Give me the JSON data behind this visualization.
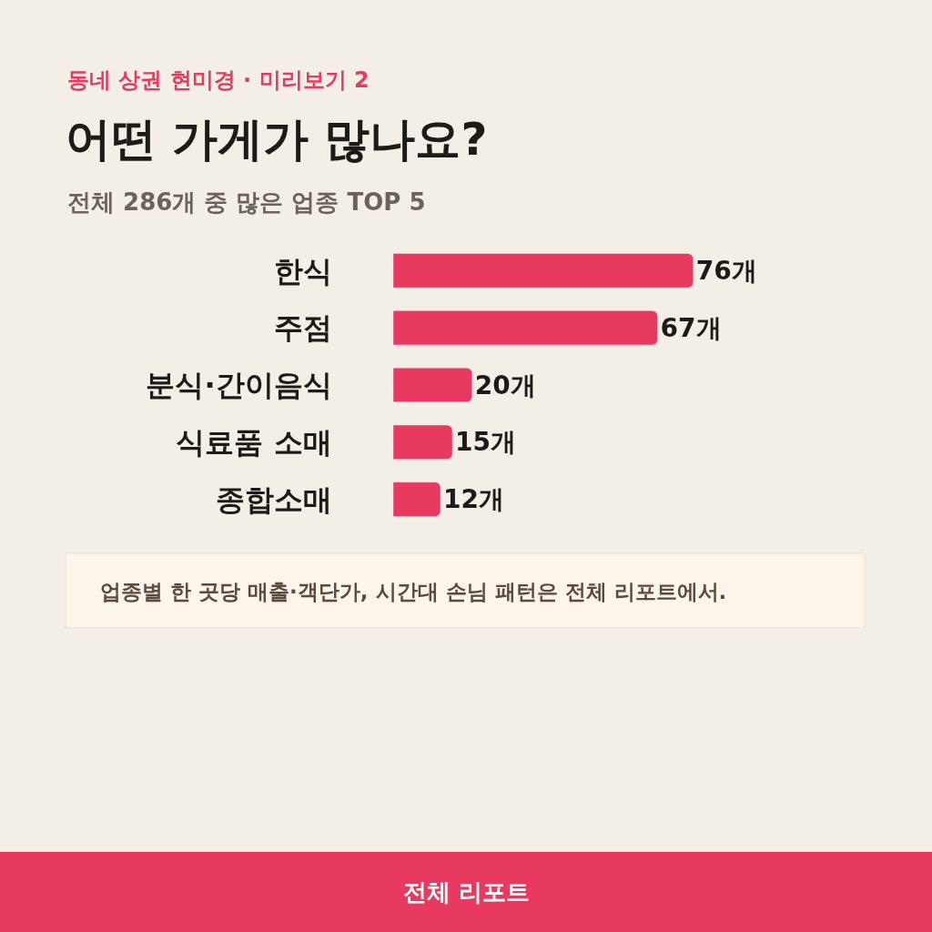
{
  "chart_data": {
    "type": "bar",
    "orientation": "horizontal",
    "title": "어떤 가게가 많나요?",
    "subtitle": "전체 286개 중 많은 업종 TOP 5",
    "categories": [
      "한식",
      "주점",
      "분식·간이음식",
      "식료품 소매",
      "종합소매"
    ],
    "values": [
      76,
      67,
      20,
      15,
      12
    ],
    "color": "#e8395f",
    "value_labels": [
      "76개",
      "67개",
      "20개",
      "15개",
      "12개"
    ],
    "grid": false,
    "legend": false,
    "tick_labels": "y",
    "annotations": [
      "동네 상권 현미경 · 미리보기 2",
      "업종별 한 곳당 매출·객단가, 시간대 손님 패턴은 전체 리포트에서.",
      "전체 리포트"
    ]
  }
}
